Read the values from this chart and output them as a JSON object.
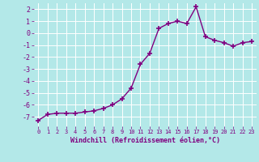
{
  "x": [
    0,
    1,
    2,
    3,
    4,
    5,
    6,
    7,
    8,
    9,
    10,
    11,
    12,
    13,
    14,
    15,
    16,
    17,
    18,
    19,
    20,
    21,
    22,
    23
  ],
  "y": [
    -7.3,
    -6.8,
    -6.7,
    -6.7,
    -6.7,
    -6.6,
    -6.5,
    -6.3,
    -6.0,
    -5.5,
    -4.6,
    -2.6,
    -1.7,
    0.4,
    0.8,
    1.0,
    0.8,
    2.2,
    -0.3,
    -0.6,
    -0.8,
    -1.1,
    -0.8,
    -0.7
  ],
  "line_color": "#800080",
  "marker": "+",
  "marker_color": "#800080",
  "bg_color": "#b3e8e8",
  "grid_color": "#ffffff",
  "xlabel": "Windchill (Refroidissement éolien,°C)",
  "xlabel_color": "#800080",
  "tick_color": "#800080",
  "ylim": [
    -7.8,
    2.5
  ],
  "xlim": [
    -0.5,
    23.5
  ],
  "yticks": [
    -7,
    -6,
    -5,
    -4,
    -3,
    -2,
    -1,
    0,
    1,
    2
  ],
  "xticks": [
    0,
    1,
    2,
    3,
    4,
    5,
    6,
    7,
    8,
    9,
    10,
    11,
    12,
    13,
    14,
    15,
    16,
    17,
    18,
    19,
    20,
    21,
    22,
    23
  ],
  "linewidth": 1.0,
  "markersize": 4
}
